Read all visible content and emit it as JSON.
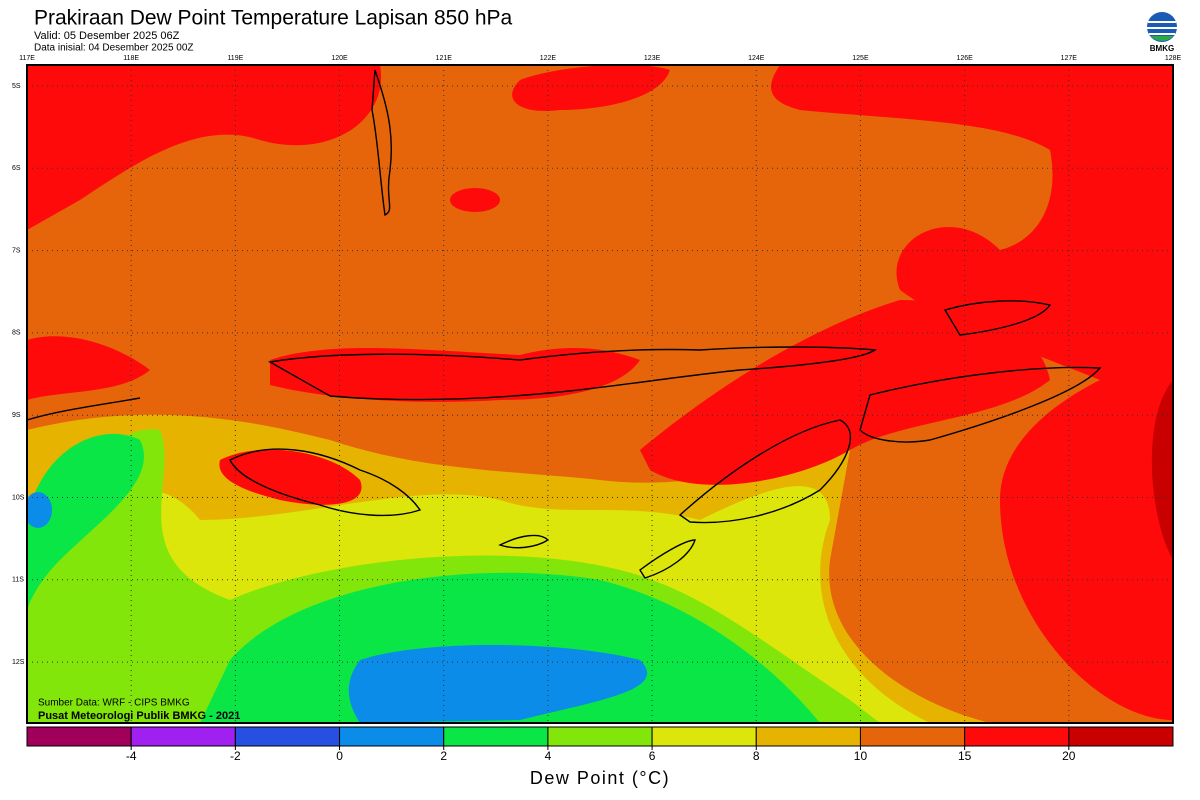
{
  "header": {
    "title": "Prakiraan Dew Point Temperature Lapisan 850 hPa",
    "valid": "Valid: 05 Desember 2025 06Z",
    "init": "Data inisial: 04 Desember 2025 00Z"
  },
  "logo": {
    "label": "BMKG"
  },
  "map": {
    "lon_labels": [
      "117E",
      "118E",
      "119E",
      "120E",
      "121E",
      "122E",
      "123E",
      "124E",
      "125E",
      "126E",
      "127E",
      "128E"
    ],
    "lat_labels": [
      "5S",
      "6S",
      "7S",
      "8S",
      "9S",
      "10S",
      "11S",
      "12S"
    ],
    "source": "Sumber Data: WRF - CIPS BMKG",
    "credit": "Pusat Meteorologi Publik BMKG - 2021"
  },
  "colorbar": {
    "colors": [
      "#a0005a",
      "#a020f0",
      "#2850e0",
      "#0a8ce8",
      "#0ae646",
      "#82e60a",
      "#dce60a",
      "#e6b400",
      "#e6640a",
      "#ff0a0a",
      "#c80000"
    ],
    "ticks": [
      -4,
      -2,
      0,
      2,
      4,
      6,
      8,
      10,
      15,
      20
    ],
    "label": "Dew Point (°C)"
  }
}
